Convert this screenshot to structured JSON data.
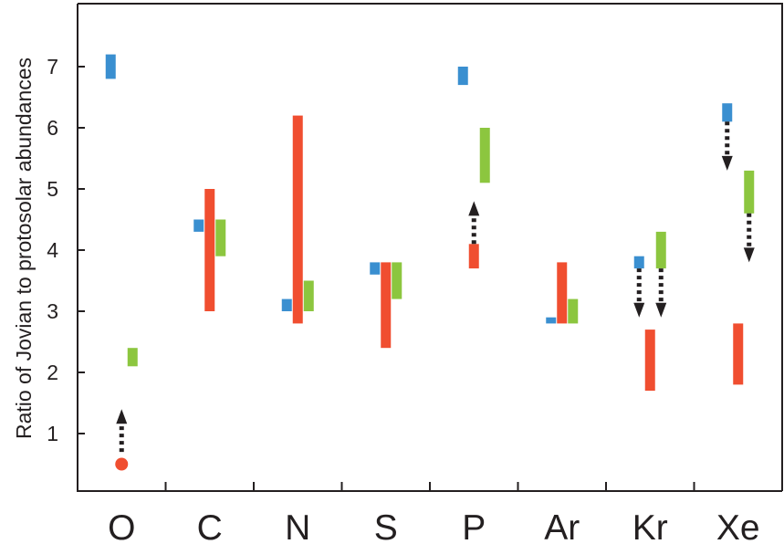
{
  "chart_data": {
    "type": "range-bar",
    "ylabel": "Ratio of Jovian to protosolar abundances",
    "categories": [
      "O",
      "C",
      "N",
      "S",
      "P",
      "Ar",
      "Kr",
      "Xe"
    ],
    "yticks": [
      "1",
      "2",
      "3",
      "4",
      "5",
      "6",
      "7"
    ],
    "ylim": [
      0,
      8
    ],
    "colors": {
      "blue": "#3a8fd0",
      "red": "#f04e30",
      "green": "#8cc63f",
      "axis": "#231f20"
    },
    "series": [
      {
        "color": "blue",
        "values": [
          {
            "category": "O",
            "low": 6.8,
            "high": 7.2
          },
          {
            "category": "C",
            "low": 4.3,
            "high": 4.5
          },
          {
            "category": "N",
            "low": 3.0,
            "high": 3.2
          },
          {
            "category": "S",
            "low": 3.6,
            "high": 3.8
          },
          {
            "category": "P",
            "low": 6.7,
            "high": 7.0
          },
          {
            "category": "Ar",
            "low": 2.8,
            "high": 2.9
          },
          {
            "category": "Kr",
            "low": 3.7,
            "high": 3.9
          },
          {
            "category": "Xe",
            "low": 6.1,
            "high": 6.4
          }
        ]
      },
      {
        "color": "red",
        "values": [
          {
            "category": "C",
            "low": 3.0,
            "high": 5.0
          },
          {
            "category": "N",
            "low": 2.8,
            "high": 6.2
          },
          {
            "category": "S",
            "low": 2.4,
            "high": 3.8
          },
          {
            "category": "P",
            "low": 3.7,
            "high": 4.1
          },
          {
            "category": "Ar",
            "low": 2.8,
            "high": 3.8
          },
          {
            "category": "Kr",
            "low": 1.7,
            "high": 2.7
          },
          {
            "category": "Xe",
            "low": 1.8,
            "high": 2.8
          }
        ]
      },
      {
        "color": "green",
        "values": [
          {
            "category": "O",
            "low": 2.1,
            "high": 2.4
          },
          {
            "category": "C",
            "low": 3.9,
            "high": 4.5
          },
          {
            "category": "N",
            "low": 3.0,
            "high": 3.5
          },
          {
            "category": "S",
            "low": 3.2,
            "high": 3.8
          },
          {
            "category": "P",
            "low": 5.1,
            "high": 6.0
          },
          {
            "category": "Ar",
            "low": 2.8,
            "high": 3.2
          },
          {
            "category": "Kr",
            "low": 3.7,
            "high": 4.3
          },
          {
            "category": "Xe",
            "low": 4.6,
            "high": 5.3
          }
        ]
      }
    ],
    "points": [
      {
        "category": "O",
        "color": "red",
        "value": 0.5
      }
    ],
    "arrows": [
      {
        "category": "O",
        "color": "red",
        "direction": "up",
        "from": 0.7,
        "to": 1.4
      },
      {
        "category": "P",
        "color": "red",
        "direction": "up",
        "from": 4.1,
        "to": 4.8
      },
      {
        "category": "Kr",
        "color": "blue",
        "direction": "down",
        "from": 3.7,
        "to": 2.9
      },
      {
        "category": "Kr",
        "color": "green",
        "direction": "down",
        "from": 3.7,
        "to": 2.9
      },
      {
        "category": "Xe",
        "color": "blue",
        "direction": "down",
        "from": 6.1,
        "to": 5.3
      },
      {
        "category": "Xe",
        "color": "green",
        "direction": "down",
        "from": 4.6,
        "to": 3.8
      }
    ]
  }
}
